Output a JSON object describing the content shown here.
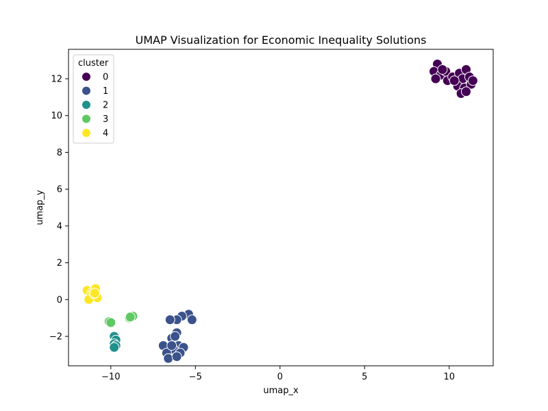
{
  "chart_data": {
    "type": "scatter",
    "title": "UMAP Visualization for Economic Inequality Solutions",
    "xlabel": "umap_x",
    "ylabel": "umap_y",
    "xlim": [
      -12.5,
      12.6
    ],
    "ylim": [
      -3.6,
      13.6
    ],
    "xticks": [
      -10,
      -5,
      0,
      5,
      10
    ],
    "xtick_labels": [
      "−10",
      "−5",
      "0",
      "5",
      "10"
    ],
    "yticks": [
      -2,
      0,
      2,
      4,
      6,
      8,
      10,
      12
    ],
    "ytick_labels": [
      "−2",
      "0",
      "2",
      "4",
      "6",
      "8",
      "10",
      "12"
    ],
    "grid": false,
    "legend": {
      "title": "cluster",
      "placement": "top-left"
    },
    "series": [
      {
        "name": "0",
        "color": "#440154",
        "points": [
          [
            9.3,
            12.8
          ],
          [
            9.1,
            12.4
          ],
          [
            9.5,
            12.2
          ],
          [
            9.2,
            12.0
          ],
          [
            9.8,
            12.4
          ],
          [
            9.9,
            11.9
          ],
          [
            10.2,
            12.1
          ],
          [
            10.4,
            11.8
          ],
          [
            10.6,
            12.3
          ],
          [
            10.8,
            12.0
          ],
          [
            11.0,
            12.5
          ],
          [
            11.2,
            12.1
          ],
          [
            10.5,
            11.6
          ],
          [
            10.9,
            11.5
          ],
          [
            11.3,
            11.7
          ],
          [
            11.4,
            11.9
          ],
          [
            10.7,
            11.2
          ],
          [
            11.0,
            11.3
          ],
          [
            10.3,
            11.9
          ],
          [
            9.6,
            12.5
          ]
        ]
      },
      {
        "name": "1",
        "color": "#3b528b",
        "points": [
          [
            -5.4,
            -0.8
          ],
          [
            -5.2,
            -1.1
          ],
          [
            -5.8,
            -0.9
          ],
          [
            -6.1,
            -1.1
          ],
          [
            -6.5,
            -1.1
          ],
          [
            -6.1,
            -1.8
          ],
          [
            -6.4,
            -2.1
          ],
          [
            -6.2,
            -2.0
          ],
          [
            -6.9,
            -2.5
          ],
          [
            -6.0,
            -2.5
          ],
          [
            -5.7,
            -2.6
          ],
          [
            -6.3,
            -2.7
          ],
          [
            -6.7,
            -2.9
          ],
          [
            -5.9,
            -2.9
          ],
          [
            -6.6,
            -3.2
          ],
          [
            -6.1,
            -3.1
          ],
          [
            -6.4,
            -2.5
          ]
        ]
      },
      {
        "name": "2",
        "color": "#21918c",
        "points": [
          [
            -9.8,
            -2.0
          ],
          [
            -9.7,
            -2.2
          ],
          [
            -9.8,
            -2.4
          ],
          [
            -9.7,
            -2.5
          ],
          [
            -9.8,
            -2.6
          ]
        ]
      },
      {
        "name": "3",
        "color": "#5ec962",
        "points": [
          [
            -10.1,
            -1.2
          ],
          [
            -10.0,
            -1.25
          ],
          [
            -8.9,
            -1.0
          ],
          [
            -8.7,
            -0.9
          ],
          [
            -8.85,
            -0.95
          ]
        ]
      },
      {
        "name": "4",
        "color": "#fde725",
        "points": [
          [
            -11.4,
            0.5
          ],
          [
            -11.1,
            0.4
          ],
          [
            -10.9,
            0.6
          ],
          [
            -11.2,
            0.2
          ],
          [
            -10.8,
            0.1
          ],
          [
            -11.3,
            0.0
          ],
          [
            -11.0,
            0.3
          ],
          [
            -10.95,
            0.35
          ]
        ]
      }
    ]
  }
}
